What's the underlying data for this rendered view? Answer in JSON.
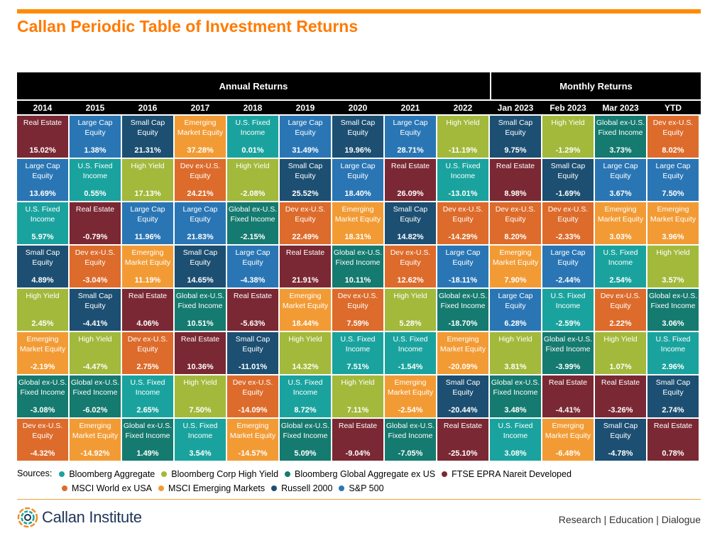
{
  "header": {
    "title": "Callan Periodic Table of Investment Returns"
  },
  "table": {
    "annual_label": "Annual Returns",
    "monthly_label": "Monthly Returns",
    "columns": [
      "2014",
      "2015",
      "2016",
      "2017",
      "2018",
      "2019",
      "2020",
      "2021",
      "2022",
      "Jan 2023",
      "Feb 2023",
      "Mar 2023",
      "YTD"
    ]
  },
  "colors": {
    "U.S. Fixed Income": "#1aa39e",
    "High Yield": "#a2b93b",
    "Global ex-U.S. Fixed Income": "#157a6f",
    "Real Estate": "#7a2833",
    "Dev ex-U.S. Equity": "#dd6b2b",
    "Emerging Market Equity": "#f29b35",
    "Small Cap Equity": "#1c4f72",
    "Large Cap Equity": "#2a76b5"
  },
  "chart_data": {
    "type": "table",
    "title": "Callan Periodic Table of Investment Returns",
    "columns": [
      "2014",
      "2015",
      "2016",
      "2017",
      "2018",
      "2019",
      "2020",
      "2021",
      "2022",
      "Jan 2023",
      "Feb 2023",
      "Mar 2023",
      "YTD"
    ],
    "grid": [
      [
        {
          "asset": "Real Estate",
          "value": "15.02%"
        },
        {
          "asset": "Large Cap Equity",
          "value": "13.69%"
        },
        {
          "asset": "U.S. Fixed Income",
          "value": "5.97%"
        },
        {
          "asset": "Small Cap Equity",
          "value": "4.89%"
        },
        {
          "asset": "High Yield",
          "value": "2.45%"
        },
        {
          "asset": "Emerging Market Equity",
          "value": "-2.19%"
        },
        {
          "asset": "Global ex-U.S. Fixed Income",
          "value": "-3.08%"
        },
        {
          "asset": "Dev ex-U.S. Equity",
          "value": "-4.32%"
        }
      ],
      [
        {
          "asset": "Large Cap Equity",
          "value": "1.38%"
        },
        {
          "asset": "U.S. Fixed Income",
          "value": "0.55%"
        },
        {
          "asset": "Real Estate",
          "value": "-0.79%"
        },
        {
          "asset": "Dev ex-U.S. Equity",
          "value": "-3.04%"
        },
        {
          "asset": "Small Cap Equity",
          "value": "-4.41%"
        },
        {
          "asset": "High Yield",
          "value": "-4.47%"
        },
        {
          "asset": "Global ex-U.S. Fixed Income",
          "value": "-6.02%"
        },
        {
          "asset": "Emerging Market Equity",
          "value": "-14.92%"
        }
      ],
      [
        {
          "asset": "Small Cap Equity",
          "value": "21.31%"
        },
        {
          "asset": "High Yield",
          "value": "17.13%"
        },
        {
          "asset": "Large Cap Equity",
          "value": "11.96%"
        },
        {
          "asset": "Emerging Market Equity",
          "value": "11.19%"
        },
        {
          "asset": "Real Estate",
          "value": "4.06%"
        },
        {
          "asset": "Dev ex-U.S. Equity",
          "value": "2.75%"
        },
        {
          "asset": "U.S. Fixed Income",
          "value": "2.65%"
        },
        {
          "asset": "Global ex-U.S. Fixed Income",
          "value": "1.49%"
        }
      ],
      [
        {
          "asset": "Emerging Market Equity",
          "value": "37.28%"
        },
        {
          "asset": "Dev ex-U.S. Equity",
          "value": "24.21%"
        },
        {
          "asset": "Large Cap Equity",
          "value": "21.83%"
        },
        {
          "asset": "Small Cap Equity",
          "value": "14.65%"
        },
        {
          "asset": "Global ex-U.S. Fixed Income",
          "value": "10.51%"
        },
        {
          "asset": "Real Estate",
          "value": "10.36%"
        },
        {
          "asset": "High Yield",
          "value": "7.50%"
        },
        {
          "asset": "U.S. Fixed Income",
          "value": "3.54%"
        }
      ],
      [
        {
          "asset": "U.S. Fixed Income",
          "value": "0.01%"
        },
        {
          "asset": "High Yield",
          "value": "-2.08%"
        },
        {
          "asset": "Global ex-U.S. Fixed Income",
          "value": "-2.15%"
        },
        {
          "asset": "Large Cap Equity",
          "value": "-4.38%"
        },
        {
          "asset": "Real Estate",
          "value": "-5.63%"
        },
        {
          "asset": "Small Cap Equity",
          "value": "-11.01%"
        },
        {
          "asset": "Dev ex-U.S. Equity",
          "value": "-14.09%"
        },
        {
          "asset": "Emerging Market Equity",
          "value": "-14.57%"
        }
      ],
      [
        {
          "asset": "Large Cap Equity",
          "value": "31.49%"
        },
        {
          "asset": "Small Cap Equity",
          "value": "25.52%"
        },
        {
          "asset": "Dev ex-U.S. Equity",
          "value": "22.49%"
        },
        {
          "asset": "Real Estate",
          "value": "21.91%"
        },
        {
          "asset": "Emerging Market Equity",
          "value": "18.44%"
        },
        {
          "asset": "High Yield",
          "value": "14.32%"
        },
        {
          "asset": "U.S. Fixed Income",
          "value": "8.72%"
        },
        {
          "asset": "Global ex-U.S. Fixed Income",
          "value": "5.09%"
        }
      ],
      [
        {
          "asset": "Small Cap Equity",
          "value": "19.96%"
        },
        {
          "asset": "Large Cap Equity",
          "value": "18.40%"
        },
        {
          "asset": "Emerging Market Equity",
          "value": "18.31%"
        },
        {
          "asset": "Global ex-U.S. Fixed Income",
          "value": "10.11%"
        },
        {
          "asset": "Dev ex-U.S. Equity",
          "value": "7.59%"
        },
        {
          "asset": "U.S. Fixed Income",
          "value": "7.51%"
        },
        {
          "asset": "High Yield",
          "value": "7.11%"
        },
        {
          "asset": "Real Estate",
          "value": "-9.04%"
        }
      ],
      [
        {
          "asset": "Large Cap Equity",
          "value": "28.71%"
        },
        {
          "asset": "Real Estate",
          "value": "26.09%"
        },
        {
          "asset": "Small Cap Equity",
          "value": "14.82%"
        },
        {
          "asset": "Dev ex-U.S. Equity",
          "value": "12.62%"
        },
        {
          "asset": "High Yield",
          "value": "5.28%"
        },
        {
          "asset": "U.S. Fixed Income",
          "value": "-1.54%"
        },
        {
          "asset": "Emerging Market Equity",
          "value": "-2.54%"
        },
        {
          "asset": "Global ex-U.S. Fixed Income",
          "value": "-7.05%"
        }
      ],
      [
        {
          "asset": "High Yield",
          "value": "-11.19%"
        },
        {
          "asset": "U.S. Fixed Income",
          "value": "-13.01%"
        },
        {
          "asset": "Dev ex-U.S. Equity",
          "value": "-14.29%"
        },
        {
          "asset": "Large Cap Equity",
          "value": "-18.11%"
        },
        {
          "asset": "Global ex-U.S. Fixed Income",
          "value": "-18.70%"
        },
        {
          "asset": "Emerging Market Equity",
          "value": "-20.09%"
        },
        {
          "asset": "Small Cap Equity",
          "value": "-20.44%"
        },
        {
          "asset": "Real Estate",
          "value": "-25.10%"
        }
      ],
      [
        {
          "asset": "Small Cap Equity",
          "value": "9.75%"
        },
        {
          "asset": "Real Estate",
          "value": "8.98%"
        },
        {
          "asset": "Dev ex-U.S. Equity",
          "value": "8.20%"
        },
        {
          "asset": "Emerging Market Equity",
          "value": "7.90%"
        },
        {
          "asset": "Large Cap Equity",
          "value": "6.28%"
        },
        {
          "asset": "High Yield",
          "value": "3.81%"
        },
        {
          "asset": "Global ex-U.S. Fixed Income",
          "value": "3.48%"
        },
        {
          "asset": "U.S. Fixed Income",
          "value": "3.08%"
        }
      ],
      [
        {
          "asset": "High Yield",
          "value": "-1.29%"
        },
        {
          "asset": "Small Cap Equity",
          "value": "-1.69%"
        },
        {
          "asset": "Dev ex-U.S. Equity",
          "value": "-2.33%"
        },
        {
          "asset": "Large Cap Equity",
          "value": "-2.44%"
        },
        {
          "asset": "U.S. Fixed Income",
          "value": "-2.59%"
        },
        {
          "asset": "Global ex-U.S. Fixed Income",
          "value": "-3.99%"
        },
        {
          "asset": "Real Estate",
          "value": "-4.41%"
        },
        {
          "asset": "Emerging Market Equity",
          "value": "-6.48%"
        }
      ],
      [
        {
          "asset": "Global ex-U.S. Fixed Income",
          "value": "3.73%"
        },
        {
          "asset": "Large Cap Equity",
          "value": "3.67%"
        },
        {
          "asset": "Emerging Market Equity",
          "value": "3.03%"
        },
        {
          "asset": "U.S. Fixed Income",
          "value": "2.54%"
        },
        {
          "asset": "Dev ex-U.S. Equity",
          "value": "2.22%"
        },
        {
          "asset": "High Yield",
          "value": "1.07%"
        },
        {
          "asset": "Real Estate",
          "value": "-3.26%"
        },
        {
          "asset": "Small Cap Equity",
          "value": "-4.78%"
        }
      ],
      [
        {
          "asset": "Dev ex-U.S. Equity",
          "value": "8.02%"
        },
        {
          "asset": "Large Cap Equity",
          "value": "7.50%"
        },
        {
          "asset": "Emerging Market Equity",
          "value": "3.96%"
        },
        {
          "asset": "High Yield",
          "value": "3.57%"
        },
        {
          "asset": "Global ex-U.S. Fixed Income",
          "value": "3.06%"
        },
        {
          "asset": "U.S. Fixed Income",
          "value": "2.96%"
        },
        {
          "asset": "Small Cap Equity",
          "value": "2.74%"
        },
        {
          "asset": "Real Estate",
          "value": "0.78%"
        }
      ]
    ]
  },
  "sources": {
    "label": "Sources:",
    "items": [
      {
        "text": "Bloomberg Aggregate",
        "color": "#1aa39e"
      },
      {
        "text": "Bloomberg Corp High Yield",
        "color": "#a2b93b"
      },
      {
        "text": "Bloomberg Global Aggregate ex US",
        "color": "#157a6f"
      },
      {
        "text": "FTSE EPRA Nareit Developed",
        "color": "#7a2833"
      },
      {
        "text": "MSCI World ex USA",
        "color": "#dd6b2b"
      },
      {
        "text": "MSCI Emerging Markets",
        "color": "#f29b35"
      },
      {
        "text": "Russell 2000",
        "color": "#1c4f72"
      },
      {
        "text": "S&P 500",
        "color": "#2a76b5"
      }
    ]
  },
  "footer": {
    "logo_text": "Callan Institute",
    "tagline": "Research | Education | Dialogue"
  }
}
